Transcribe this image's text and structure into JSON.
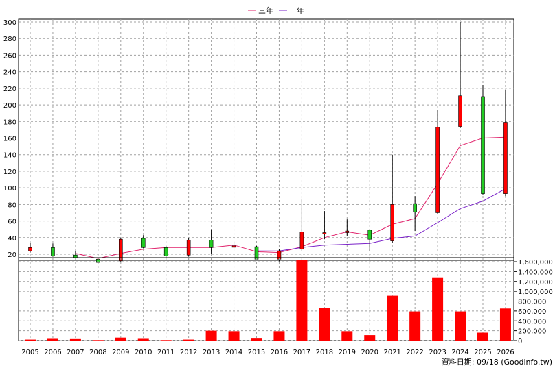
{
  "legend": {
    "items": [
      {
        "label": "三年",
        "color": "#e0206a"
      },
      {
        "label": "十年",
        "color": "#7a22c8"
      }
    ]
  },
  "footer": {
    "label": "資料日期: 09/18  (Goodinfo.tw)"
  },
  "colors": {
    "up_candle": "#ff0000",
    "down_candle": "#22cc22",
    "volume_bar": "#ff0000",
    "grid": "#a0a0a0"
  },
  "chart_data": [
    {
      "type": "candlestick",
      "title": "",
      "xlabel": "",
      "ylabel": "",
      "ylim": [
        0,
        300
      ],
      "y_ticks": [
        20,
        40,
        60,
        80,
        100,
        120,
        140,
        160,
        180,
        200,
        220,
        240,
        260,
        280,
        300
      ],
      "grid": true,
      "legend_position": "top-center",
      "categories": [
        "2005",
        "2006",
        "2007",
        "2008",
        "2009",
        "2010",
        "2011",
        "2012",
        "2013",
        "2014",
        "2015",
        "2016",
        "2017",
        "2018",
        "2019",
        "2020",
        "2021",
        "2022",
        "2023",
        "2024",
        "2025",
        "2026"
      ],
      "ohlc": [
        {
          "open": 24,
          "high": 34,
          "low": 22,
          "close": 28
        },
        {
          "open": 28,
          "high": 33,
          "low": 17,
          "close": 18
        },
        {
          "open": 19,
          "high": 24,
          "low": 15,
          "close": 16
        },
        {
          "open": 14,
          "high": 15,
          "low": 9,
          "close": 10
        },
        {
          "open": 12,
          "high": 40,
          "low": 10,
          "close": 38
        },
        {
          "open": 39,
          "high": 43,
          "low": 27,
          "close": 28
        },
        {
          "open": 28,
          "high": 30,
          "low": 15,
          "close": 18
        },
        {
          "open": 19,
          "high": 39,
          "low": 17,
          "close": 37
        },
        {
          "open": 37,
          "high": 50,
          "low": 20,
          "close": 28
        },
        {
          "open": 30,
          "high": 35,
          "low": 27,
          "close": 30
        },
        {
          "open": 29,
          "high": 30,
          "low": 13,
          "close": 14
        },
        {
          "open": 14,
          "high": 26,
          "low": 11,
          "close": 24
        },
        {
          "open": 26,
          "high": 87,
          "low": 24,
          "close": 47
        },
        {
          "open": 45,
          "high": 72,
          "low": 38,
          "close": 46
        },
        {
          "open": 46,
          "high": 62,
          "low": 42,
          "close": 48
        },
        {
          "open": 49,
          "high": 50,
          "low": 24,
          "close": 38
        },
        {
          "open": 36,
          "high": 140,
          "low": 34,
          "close": 80
        },
        {
          "open": 81,
          "high": 90,
          "low": 48,
          "close": 71
        },
        {
          "open": 70,
          "high": 194,
          "low": 68,
          "close": 173
        },
        {
          "open": 174,
          "high": 300,
          "low": 172,
          "close": 211
        },
        {
          "open": 210,
          "high": 224,
          "low": 92,
          "close": 93
        },
        {
          "open": 93,
          "high": 218,
          "low": 90,
          "close": 179
        }
      ],
      "series": [
        {
          "name": "三年",
          "values": [
            null,
            null,
            21,
            15,
            21,
            26,
            28,
            28,
            28,
            31,
            23,
            22,
            29,
            40,
            47,
            43,
            56,
            63,
            105,
            151,
            160,
            161
          ]
        },
        {
          "name": "十年",
          "values": [
            null,
            null,
            null,
            null,
            null,
            null,
            null,
            null,
            null,
            null,
            24,
            24,
            28,
            31,
            32,
            33,
            39,
            42,
            58,
            75,
            84,
            99
          ]
        }
      ]
    },
    {
      "type": "bar",
      "title": "",
      "xlabel": "",
      "ylabel": "",
      "ylim": [
        0,
        1600000
      ],
      "y_ticks": [
        "0",
        "200,000",
        "400,000",
        "600,000",
        "800,000",
        "1,000,000",
        "1,200,000",
        "1,400,000",
        "1,600,000"
      ],
      "y_tick_values": [
        0,
        200000,
        400000,
        600000,
        800000,
        1000000,
        1200000,
        1400000,
        1600000
      ],
      "grid": true,
      "categories": [
        "2005",
        "2006",
        "2007",
        "2008",
        "2009",
        "2010",
        "2011",
        "2012",
        "2013",
        "2014",
        "2015",
        "2016",
        "2017",
        "2018",
        "2019",
        "2020",
        "2021",
        "2022",
        "2023",
        "2024",
        "2025",
        "2026"
      ],
      "values": [
        20000,
        35000,
        30000,
        10000,
        60000,
        35000,
        10000,
        20000,
        200000,
        190000,
        40000,
        190000,
        1640000,
        660000,
        190000,
        110000,
        910000,
        590000,
        1270000,
        590000,
        160000,
        650000
      ]
    }
  ]
}
